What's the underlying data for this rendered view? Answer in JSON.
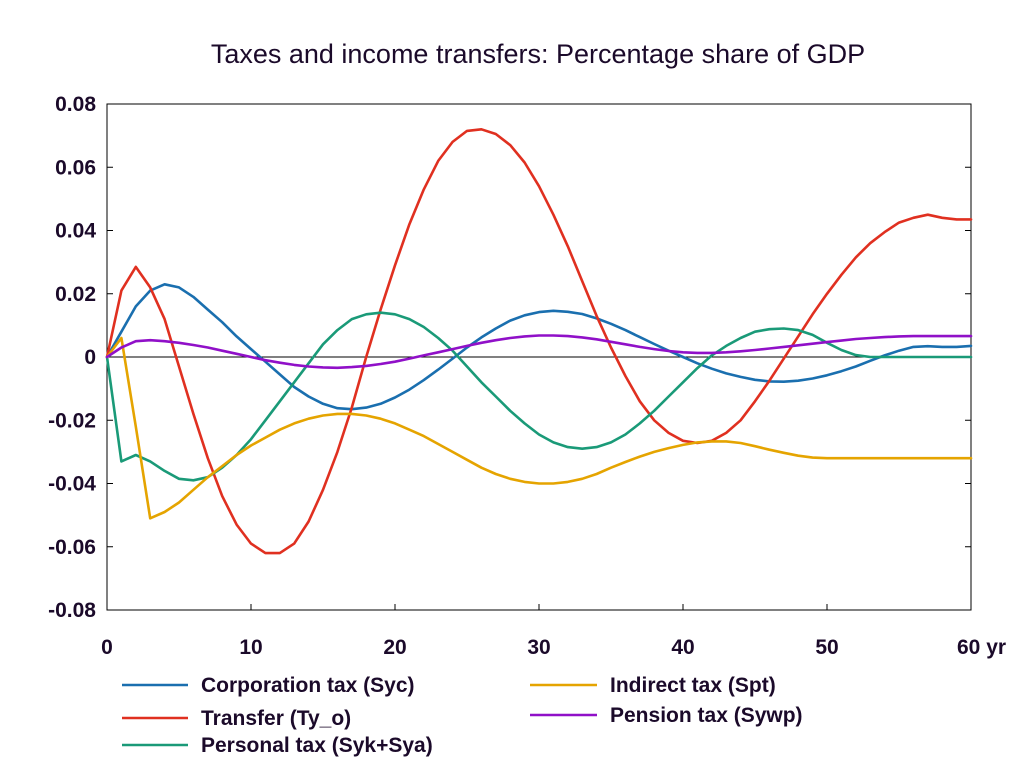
{
  "chart_data": {
    "type": "line",
    "title": "Taxes and income transfers: Percentage share of GDP",
    "xlabel": "",
    "ylabel": "",
    "x_unit": "yr",
    "xlim": [
      0,
      60
    ],
    "ylim": [
      -0.08,
      0.08
    ],
    "x_ticks": [
      0,
      10,
      20,
      30,
      40,
      50,
      60
    ],
    "x_tick_labels": [
      "0",
      "10",
      "20",
      "30",
      "40",
      "50",
      "60 yr"
    ],
    "y_ticks": [
      -0.08,
      -0.06,
      -0.04,
      -0.02,
      0,
      0.02,
      0.04,
      0.06,
      0.08
    ],
    "y_tick_labels": [
      "-0.08",
      "-0.06",
      "-0.04",
      "-0.02",
      "0",
      "0.02",
      "0.04",
      "0.06",
      "0.08"
    ],
    "zero_line": true,
    "grid": false,
    "legend_position": "bottom",
    "x": [
      0,
      1,
      2,
      3,
      4,
      5,
      6,
      7,
      8,
      9,
      10,
      11,
      12,
      13,
      14,
      15,
      16,
      17,
      18,
      19,
      20,
      21,
      22,
      23,
      24,
      25,
      26,
      27,
      28,
      29,
      30,
      31,
      32,
      33,
      34,
      35,
      36,
      37,
      38,
      39,
      40,
      41,
      42,
      43,
      44,
      45,
      46,
      47,
      48,
      49,
      50,
      51,
      52,
      53,
      54,
      55,
      56,
      57,
      58,
      59,
      60
    ],
    "series": [
      {
        "name": "Corporation tax (Syc)",
        "color": "#1a6faf",
        "values": [
          0,
          0.008,
          0.016,
          0.021,
          0.023,
          0.022,
          0.019,
          0.015,
          0.011,
          0.0065,
          0.0025,
          -0.0015,
          -0.0055,
          -0.0095,
          -0.0125,
          -0.0148,
          -0.0162,
          -0.0165,
          -0.016,
          -0.0148,
          -0.0128,
          -0.0103,
          -0.0073,
          -0.004,
          -0.0005,
          0.003,
          0.0062,
          0.009,
          0.0115,
          0.0132,
          0.0142,
          0.0146,
          0.0143,
          0.0136,
          0.0122,
          0.0105,
          0.0085,
          0.0063,
          0.0041,
          0.002,
          0,
          -0.002,
          -0.0037,
          -0.0052,
          -0.0063,
          -0.0072,
          -0.0077,
          -0.0078,
          -0.0075,
          -0.0068,
          -0.0058,
          -0.0045,
          -0.003,
          -0.0012,
          0.0005,
          0.002,
          0.0032,
          0.0034,
          0.0032,
          0.0032,
          0.0035
        ]
      },
      {
        "name": "Transfer (Ty_o)",
        "color": "#e03020",
        "values": [
          0,
          0.021,
          0.0285,
          0.022,
          0.012,
          -0.003,
          -0.018,
          -0.032,
          -0.044,
          -0.053,
          -0.059,
          -0.062,
          -0.062,
          -0.059,
          -0.052,
          -0.042,
          -0.03,
          -0.016,
          0,
          0.015,
          0.029,
          0.042,
          0.053,
          0.062,
          0.068,
          0.0715,
          0.072,
          0.0705,
          0.067,
          0.0615,
          0.054,
          0.045,
          0.035,
          0.024,
          0.013,
          0.003,
          -0.006,
          -0.014,
          -0.02,
          -0.024,
          -0.0265,
          -0.0272,
          -0.0265,
          -0.024,
          -0.02,
          -0.014,
          -0.0075,
          -0.0005,
          0.0065,
          0.0135,
          0.02,
          0.026,
          0.0315,
          0.036,
          0.0395,
          0.0425,
          0.044,
          0.045,
          0.044,
          0.0435,
          0.0435
        ]
      },
      {
        "name": "Personal tax (Syk+Sya)",
        "color": "#1a9a78",
        "values": [
          0,
          -0.033,
          -0.031,
          -0.033,
          -0.036,
          -0.0385,
          -0.039,
          -0.038,
          -0.035,
          -0.031,
          -0.026,
          -0.02,
          -0.014,
          -0.008,
          -0.002,
          0.004,
          0.0085,
          0.012,
          0.0135,
          0.014,
          0.0135,
          0.012,
          0.0095,
          0.006,
          0.002,
          -0.003,
          -0.008,
          -0.0125,
          -0.017,
          -0.021,
          -0.0245,
          -0.027,
          -0.0285,
          -0.029,
          -0.0285,
          -0.027,
          -0.0245,
          -0.021,
          -0.017,
          -0.0125,
          -0.008,
          -0.0035,
          0.0005,
          0.0035,
          0.006,
          0.008,
          0.0088,
          0.009,
          0.0085,
          0.007,
          0.0045,
          0.0022,
          0.0006,
          0,
          0,
          0,
          0,
          0,
          0,
          0,
          0
        ]
      },
      {
        "name": "Indirect tax (Spt)",
        "color": "#e5a400",
        "values": [
          0,
          0.006,
          -0.022,
          -0.051,
          -0.049,
          -0.046,
          -0.042,
          -0.038,
          -0.0345,
          -0.031,
          -0.028,
          -0.0255,
          -0.023,
          -0.021,
          -0.0195,
          -0.0185,
          -0.018,
          -0.018,
          -0.0185,
          -0.0195,
          -0.021,
          -0.023,
          -0.025,
          -0.0275,
          -0.03,
          -0.0325,
          -0.035,
          -0.037,
          -0.0385,
          -0.0395,
          -0.04,
          -0.04,
          -0.0395,
          -0.0385,
          -0.037,
          -0.035,
          -0.0332,
          -0.0315,
          -0.03,
          -0.0288,
          -0.0278,
          -0.027,
          -0.0267,
          -0.0267,
          -0.0272,
          -0.0282,
          -0.0293,
          -0.0303,
          -0.0312,
          -0.0318,
          -0.032,
          -0.032,
          -0.032,
          -0.032,
          -0.032,
          -0.032,
          -0.032,
          -0.032,
          -0.032,
          -0.032,
          -0.032
        ]
      },
      {
        "name": "Pension tax (Sywp)",
        "color": "#9010c8",
        "values": [
          0,
          0.003,
          0.005,
          0.0053,
          0.005,
          0.0045,
          0.0038,
          0.003,
          0.002,
          0.001,
          0,
          -0.001,
          -0.0018,
          -0.0025,
          -0.003,
          -0.0033,
          -0.0034,
          -0.0032,
          -0.0028,
          -0.0022,
          -0.0015,
          -0.0005,
          0.0005,
          0.0015,
          0.0025,
          0.0035,
          0.0045,
          0.0053,
          0.006,
          0.0065,
          0.0068,
          0.0068,
          0.0066,
          0.0062,
          0.0056,
          0.0048,
          0.004,
          0.0032,
          0.0025,
          0.0019,
          0.0015,
          0.0013,
          0.0013,
          0.0015,
          0.0018,
          0.0022,
          0.0027,
          0.0032,
          0.0037,
          0.0042,
          0.0047,
          0.0052,
          0.0057,
          0.006,
          0.0063,
          0.0065,
          0.0066,
          0.0066,
          0.0066,
          0.0066,
          0.0066
        ]
      }
    ]
  }
}
